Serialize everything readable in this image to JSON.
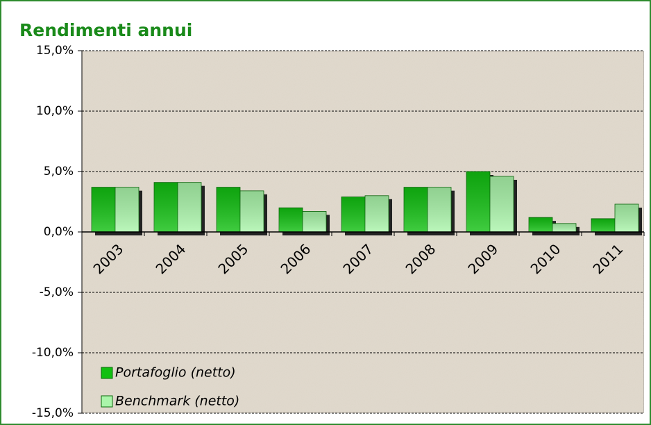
{
  "chart_data": {
    "type": "bar",
    "title": "Rendimenti annui",
    "categories": [
      "2003",
      "2004",
      "2005",
      "2006",
      "2007",
      "2008",
      "2009",
      "2010",
      "2011"
    ],
    "series": [
      {
        "name": "Portafoglio (netto)",
        "color": "#11c011",
        "values": [
          3.7,
          4.1,
          3.7,
          2.0,
          2.9,
          3.7,
          5.0,
          1.2,
          1.1
        ]
      },
      {
        "name": "Benchmark (netto)",
        "color": "#aaf5aa",
        "values": [
          3.7,
          4.1,
          3.4,
          1.7,
          3.0,
          3.7,
          4.6,
          0.7,
          2.3
        ]
      }
    ],
    "ylim": [
      -15,
      15
    ],
    "yticks": [
      {
        "value": 15,
        "label": "15,0%"
      },
      {
        "value": 10,
        "label": "10,0%"
      },
      {
        "value": 5,
        "label": "5,0%"
      },
      {
        "value": 0,
        "label": "0,0%"
      },
      {
        "value": -5,
        "label": "-5,0%"
      },
      {
        "value": -10,
        "label": "-10,0%"
      },
      {
        "value": -15,
        "label": "-15,0%"
      }
    ],
    "grid": true,
    "legend": "bottom-left"
  }
}
